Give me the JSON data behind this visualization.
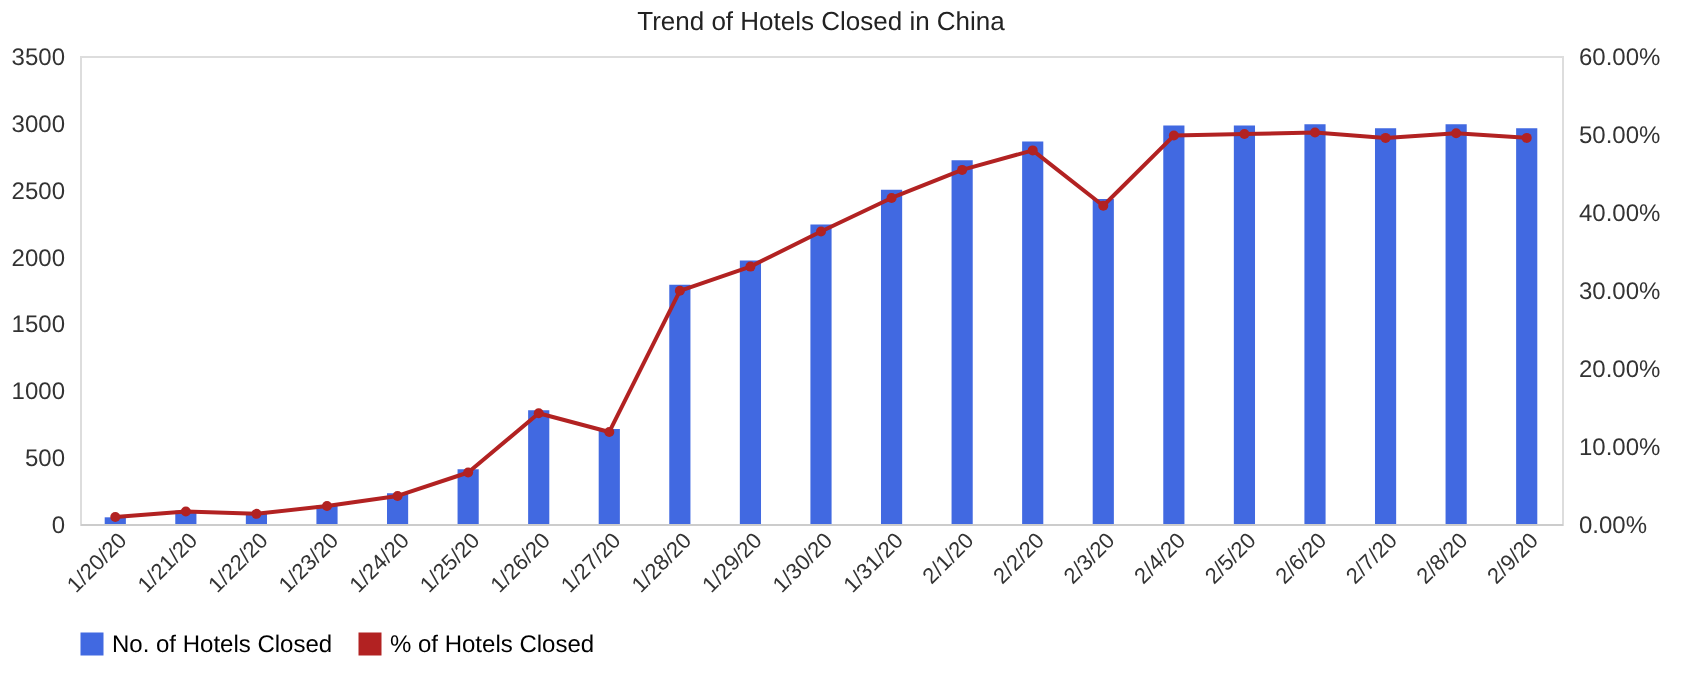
{
  "chart_data": {
    "type": "bar",
    "title": "Trend of Hotels Closed in China",
    "categories": [
      "1/20/20",
      "1/21/20",
      "1/22/20",
      "1/23/20",
      "1/24/20",
      "1/25/20",
      "1/26/20",
      "1/27/20",
      "1/28/20",
      "1/29/20",
      "1/30/20",
      "1/31/20",
      "2/1/20",
      "2/2/20",
      "2/3/20",
      "2/4/20",
      "2/5/20",
      "2/6/20",
      "2/7/20",
      "2/8/20",
      "2/9/20"
    ],
    "series": [
      {
        "name": "No. of Hotels Closed",
        "color": "#4169e1",
        "values": [
          50,
          100,
          80,
          140,
          230,
          410,
          850,
          710,
          1790,
          1970,
          2240,
          2500,
          2720,
          2860,
          2430,
          2980,
          2980,
          2990,
          2960,
          2990,
          2960
        ]
      },
      {
        "name": "% of Hotels Closed",
        "type": "line",
        "axis": "y2",
        "color": "#b22222",
        "marker": "circle",
        "values": [
          0.9,
          1.6,
          1.3,
          2.3,
          3.6,
          6.6,
          14.2,
          11.8,
          29.9,
          33.0,
          37.5,
          41.8,
          45.4,
          47.9,
          40.8,
          49.8,
          50.0,
          50.2,
          49.5,
          50.1,
          49.5
        ]
      }
    ],
    "ylim": [
      0,
      3500
    ],
    "yticks": [
      0,
      500,
      1000,
      1500,
      2000,
      2500,
      3000,
      3500
    ],
    "y2lim": [
      0,
      60
    ],
    "y2ticks": [
      {
        "value": 0,
        "label": "0.00%"
      },
      {
        "value": 10,
        "label": "10.00%"
      },
      {
        "value": 20,
        "label": "20.00%"
      },
      {
        "value": 30,
        "label": "30.00%"
      },
      {
        "value": 40,
        "label": "40.00%"
      },
      {
        "value": 50,
        "label": "50.00%"
      },
      {
        "value": 60,
        "label": "60.00%"
      }
    ],
    "grid": false,
    "legend": "bottom"
  }
}
